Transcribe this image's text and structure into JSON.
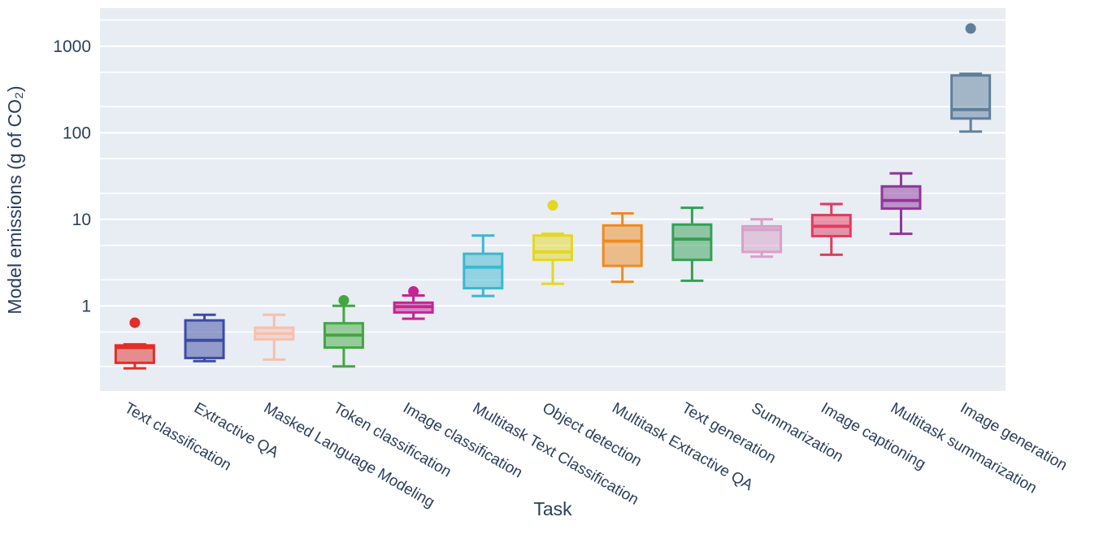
{
  "chart_data": {
    "type": "box",
    "title": "",
    "xlabel": "Task",
    "ylabel": "Model emissions (g of CO₂)",
    "yscale": "log",
    "ylim": [
      0.104,
      2750
    ],
    "grid": true,
    "legend": false,
    "plot_bg": "#e8ecf3",
    "grid_color": "#ffffff",
    "font_color": "#2a3f5f",
    "xtick_angle_deg": 30,
    "ytick_values": [
      1,
      10,
      100,
      1000
    ],
    "ytick_labels": [
      "1",
      "10",
      "100",
      "1000"
    ],
    "minor_gridlines": [
      0.2,
      0.5,
      2,
      5,
      20,
      50,
      200,
      500,
      2000
    ],
    "categories": [
      "Text classification",
      "Extractive QA",
      "Masked Language Modeling",
      "Token classification",
      "Image classification",
      "Multitask Text Classification",
      "Object detection",
      "Multitask Extractive QA",
      "Text generation",
      "Summarization",
      "Image captioning",
      "Multitask summarization",
      "Image generation"
    ],
    "series": [
      {
        "task": "Text classification",
        "color": "#e22e28",
        "whisker_low": 0.19,
        "q1": 0.22,
        "median": 0.33,
        "q3": 0.35,
        "whisker_high": 0.36,
        "outliers": [
          0.64
        ]
      },
      {
        "task": "Extractive QA",
        "color": "#3c4ba3",
        "whisker_low": 0.23,
        "q1": 0.25,
        "median": 0.4,
        "q3": 0.68,
        "whisker_high": 0.79,
        "outliers": []
      },
      {
        "task": "Masked Language Modeling",
        "color": "#f5c1ad",
        "whisker_low": 0.24,
        "q1": 0.41,
        "median": 0.48,
        "q3": 0.56,
        "whisker_high": 0.79,
        "outliers": []
      },
      {
        "task": "Token classification",
        "color": "#41a741",
        "whisker_low": 0.2,
        "q1": 0.33,
        "median": 0.46,
        "q3": 0.63,
        "whisker_high": 1.0,
        "outliers": [
          1.16
        ]
      },
      {
        "task": "Image classification",
        "color": "#c42595",
        "whisker_low": 0.71,
        "q1": 0.84,
        "median": 0.98,
        "q3": 1.09,
        "whisker_high": 1.32,
        "outliers": [
          1.47
        ]
      },
      {
        "task": "Multitask Text Classification",
        "color": "#3cb7cf",
        "whisker_low": 1.3,
        "q1": 1.6,
        "median": 2.8,
        "q3": 4.0,
        "whisker_high": 6.5,
        "outliers": []
      },
      {
        "task": "Object detection",
        "color": "#e3d723",
        "whisker_low": 1.8,
        "q1": 3.4,
        "median": 4.2,
        "q3": 6.5,
        "whisker_high": 6.8,
        "outliers": [
          14.5
        ]
      },
      {
        "task": "Multitask Extractive QA",
        "color": "#ee8b20",
        "whisker_low": 1.9,
        "q1": 2.9,
        "median": 5.6,
        "q3": 8.5,
        "whisker_high": 11.7,
        "outliers": []
      },
      {
        "task": "Text generation",
        "color": "#34a054",
        "whisker_low": 1.95,
        "q1": 3.4,
        "median": 5.9,
        "q3": 8.7,
        "whisker_high": 13.6,
        "outliers": []
      },
      {
        "task": "Summarization",
        "color": "#d8a0c8",
        "whisker_low": 3.7,
        "q1": 4.2,
        "median": 7.6,
        "q3": 8.3,
        "whisker_high": 10.0,
        "outliers": []
      },
      {
        "task": "Image captioning",
        "color": "#e33a60",
        "whisker_low": 3.9,
        "q1": 6.4,
        "median": 8.3,
        "q3": 11.2,
        "whisker_high": 15.0,
        "outliers": []
      },
      {
        "task": "Multitask summarization",
        "color": "#90359b",
        "whisker_low": 6.8,
        "q1": 13.3,
        "median": 16.5,
        "q3": 24.0,
        "whisker_high": 34.0,
        "outliers": []
      },
      {
        "task": "Image generation",
        "color": "#5e7f9b",
        "whisker_low": 103,
        "q1": 146,
        "median": 185,
        "q3": 459,
        "whisker_high": 480,
        "outliers": [
          1600
        ]
      }
    ]
  }
}
